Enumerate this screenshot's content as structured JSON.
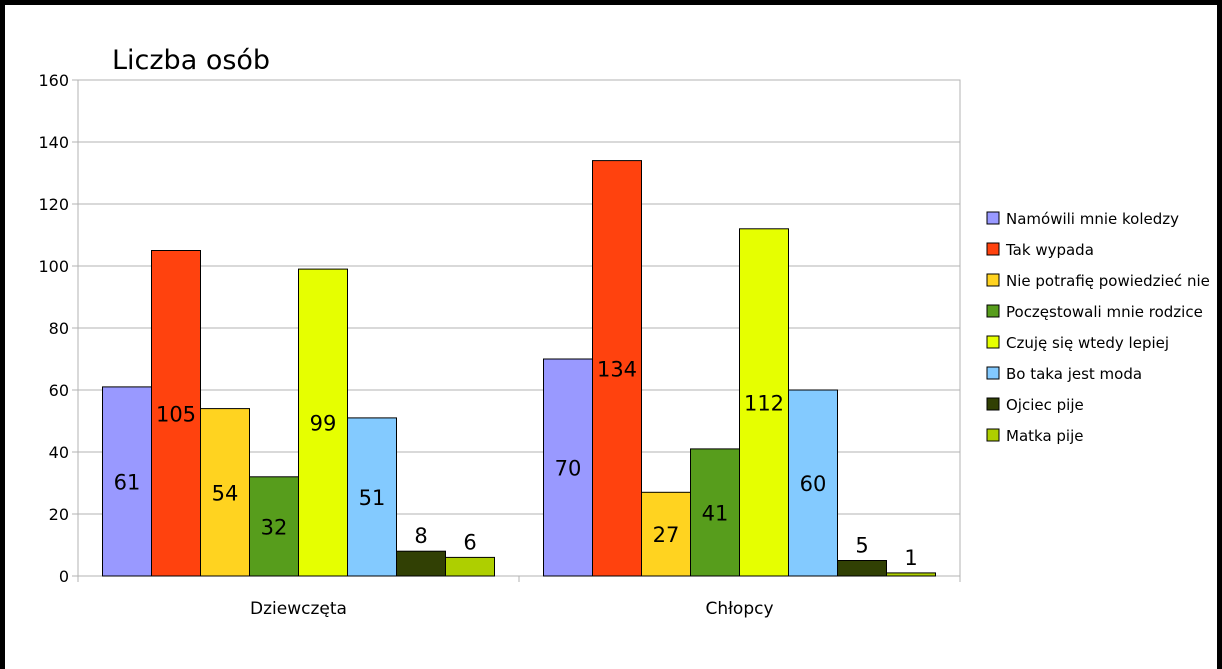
{
  "chart_data": {
    "type": "bar",
    "title": "Liczba osób",
    "categories": [
      "Dziewczęta",
      "Chłopcy"
    ],
    "series": [
      {
        "name": "Namówili mnie koledzy",
        "color": "#9999ff",
        "values": [
          61,
          70
        ]
      },
      {
        "name": "Tak wypada",
        "color": "#ff420e",
        "values": [
          105,
          134
        ]
      },
      {
        "name": "Nie potrafię powiedzieć nie",
        "color": "#ffd320",
        "values": [
          54,
          27
        ]
      },
      {
        "name": "Poczęstowali mnie rodzice",
        "color": "#579d1c",
        "values": [
          32,
          41
        ]
      },
      {
        "name": "Czuję się wtedy lepiej",
        "color": "#e6ff00",
        "values": [
          99,
          112
        ]
      },
      {
        "name": "Bo taka jest moda",
        "color": "#83caff",
        "values": [
          51,
          60
        ]
      },
      {
        "name": "Ojciec pije",
        "color": "#314004",
        "values": [
          8,
          5
        ]
      },
      {
        "name": "Matka pije",
        "color": "#aecf00",
        "values": [
          6,
          1
        ]
      }
    ],
    "ylim": [
      0,
      160
    ],
    "yticks": [
      0,
      20,
      40,
      60,
      80,
      100,
      120,
      140,
      160
    ],
    "grid": true,
    "legend": "right"
  }
}
